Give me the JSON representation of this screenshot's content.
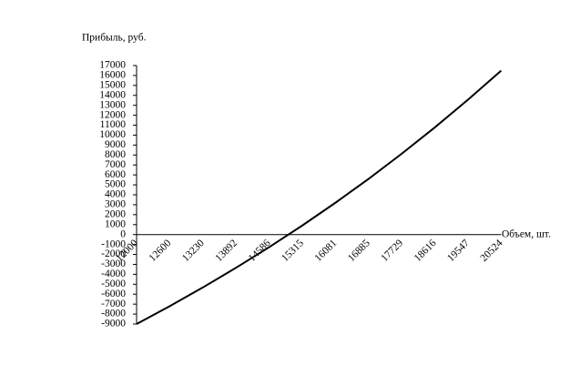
{
  "chart_data": {
    "type": "line",
    "y_label": "Прибыль, руб.",
    "x_label": "Объем, шт.",
    "categories": [
      "12000",
      "12600",
      "13230",
      "13892",
      "14586",
      "15315",
      "16081",
      "16885",
      "17729",
      "18616",
      "19547",
      "20524"
    ],
    "series": [
      {
        "name": "Прибыль",
        "color": "#000000",
        "values": [
          -9000,
          -7200,
          -5320,
          -3340,
          -1270,
          910,
          3200,
          5600,
          8130,
          10780,
          13570,
          16490
        ]
      }
    ],
    "ylim": [
      -9000,
      17000
    ],
    "yticks": [
      -9000,
      -8000,
      -7000,
      -6000,
      -5000,
      -4000,
      -3000,
      -2000,
      -1000,
      0,
      1000,
      2000,
      3000,
      4000,
      5000,
      6000,
      7000,
      8000,
      9000,
      10000,
      11000,
      12000,
      13000,
      14000,
      15000,
      16000,
      17000
    ]
  }
}
